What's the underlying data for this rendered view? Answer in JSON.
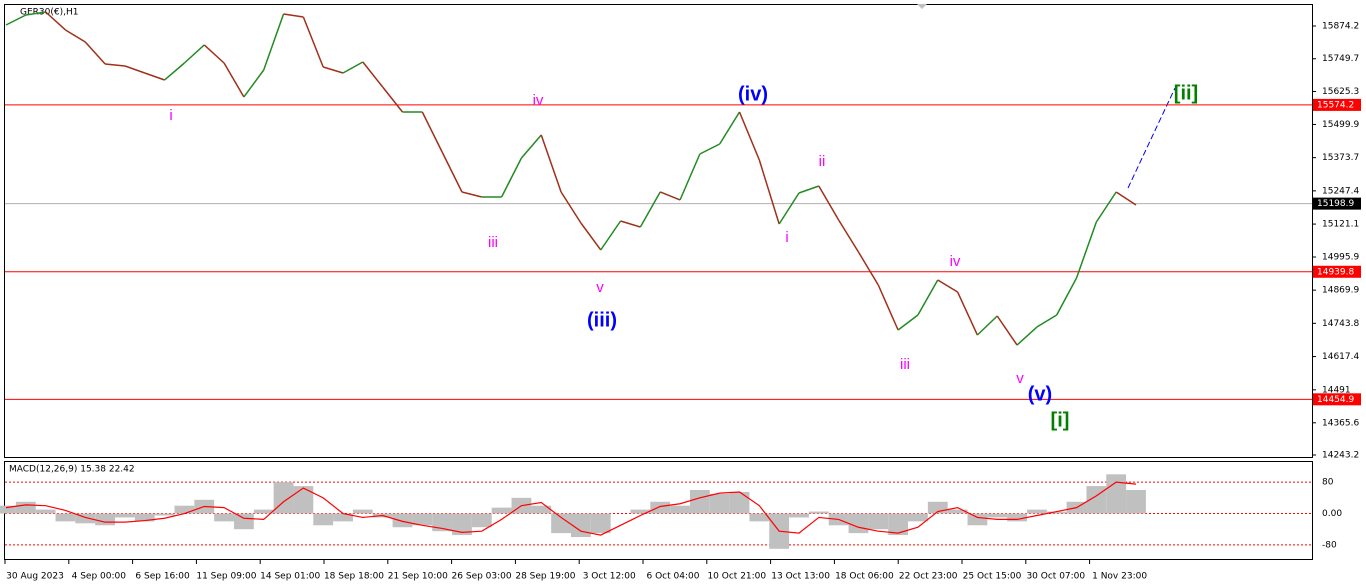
{
  "chart_data": [
    {
      "type": "line",
      "title": "GER30(€),H1",
      "x_axis_labels": [
        "30 Aug 2023",
        "4 Sep 00:00",
        "6 Sep 16:00",
        "11 Sep 09:00",
        "14 Sep 01:00",
        "18 Sep 18:00",
        "21 Sep 10:00",
        "26 Sep 03:00",
        "28 Sep 19:00",
        "3 Oct 12:00",
        "6 Oct 04:00",
        "10 Oct 21:00",
        "13 Oct 13:00",
        "18 Oct 06:00",
        "22 Oct 23:00",
        "25 Oct 15:00",
        "30 Oct 07:00",
        "1 Nov 23:00"
      ],
      "values": [
        15878.0,
        15916.0,
        15927.4,
        15859.0,
        15813.4,
        15729.7,
        15722.1,
        15695.5,
        15668.9,
        15733.5,
        15802.0,
        15733.5,
        15604.3,
        15706.9,
        15919.8,
        15908.4,
        15718.3,
        15695.5,
        15737.3,
        15642.3,
        15547.2,
        15547.2,
        15395.1,
        15243.1,
        15224.1,
        15224.1,
        15372.3,
        15459.8,
        15243.1,
        15125.2,
        15022.6,
        15132.8,
        15110.0,
        15243.1,
        15212.7,
        15387.5,
        15425.6,
        15547.2,
        15364.7,
        15121.4,
        15239.3,
        15265.9,
        15136.6,
        15015.0,
        14889.5,
        14718.4,
        14775.4,
        14908.5,
        14862.9,
        14699.4,
        14771.6,
        14661.3,
        14729.8,
        14775.4,
        14916.1,
        15129.0,
        15243.1,
        15193.7
      ],
      "up_color": "#228b22",
      "down_color": "#a0301a",
      "ylim": [
        14235.6,
        15957.8
      ],
      "yticks": [
        15874.2,
        15749.7,
        15625.3,
        15499.9,
        15373.7,
        15247.4,
        15121.1,
        14995.9,
        14869.9,
        14743.8,
        14617.4,
        14491.0,
        14365.6,
        14243.2
      ],
      "hlines": [
        {
          "value": 15574.2,
          "color": "#ff0000"
        },
        {
          "value": 14939.8,
          "color": "#ff0000"
        },
        {
          "value": 14454.9,
          "color": "#ff0000"
        },
        {
          "value": 15198.9,
          "color": "#000000"
        }
      ],
      "annotations": [
        {
          "text": "i",
          "color": "#ff00ff"
        },
        {
          "text": "iii",
          "color": "#ff00ff"
        },
        {
          "text": "iv",
          "color": "#ff00ff"
        },
        {
          "text": "v",
          "color": "#ff00ff"
        },
        {
          "text": "ii",
          "color": "#ff00ff"
        },
        {
          "text": "i",
          "color": "#ff00ff"
        },
        {
          "text": "iii",
          "color": "#ff00ff"
        },
        {
          "text": "iv",
          "color": "#ff00ff"
        },
        {
          "text": "v",
          "color": "#ff00ff"
        },
        {
          "text": "(iii)",
          "color": "#0000ff"
        },
        {
          "text": "(iv)",
          "color": "#0000ff"
        },
        {
          "text": "(v)",
          "color": "#0000ff"
        },
        {
          "text": "[i]",
          "color": "#008000"
        },
        {
          "text": "[ii]",
          "color": "#008000"
        }
      ]
    },
    {
      "type": "macd",
      "title": "MACD(12,26,9) 15.38 22.42",
      "ylim": [
        -116,
        134
      ],
      "yticks": [
        80,
        {
          "value": 0,
          "label": "0.00"
        },
        -80
      ],
      "series": [
        {
          "color": "#c0c0c0",
          "values": [
            20,
            30,
            10,
            -20,
            -25,
            -30,
            -10,
            -20,
            -5,
            20,
            35,
            -20,
            -40,
            10,
            80,
            70,
            -30,
            -20,
            10,
            -10,
            -35,
            -30,
            -45,
            -55,
            -35,
            15,
            40,
            20,
            -50,
            -60,
            -50,
            0,
            10,
            30,
            20,
            60,
            50,
            55,
            -20,
            -90,
            -10,
            5,
            -30,
            -50,
            -40,
            -55,
            -20,
            30,
            10,
            -30,
            -10,
            -20,
            10,
            5,
            30,
            70,
            100,
            60
          ]
        },
        {
          "color": "#ff0000",
          "values": [
            15,
            22,
            20,
            8,
            -10,
            -22,
            -22,
            -18,
            -12,
            0,
            18,
            15,
            -12,
            -15,
            30,
            65,
            40,
            0,
            -10,
            -5,
            -20,
            -30,
            -38,
            -48,
            -45,
            -15,
            20,
            28,
            -10,
            -45,
            -55,
            -30,
            -5,
            18,
            25,
            40,
            52,
            55,
            20,
            -45,
            -50,
            -10,
            -15,
            -35,
            -45,
            -50,
            -35,
            5,
            15,
            -10,
            -15,
            -15,
            -5,
            5,
            15,
            45,
            80,
            75
          ]
        }
      ]
    }
  ]
}
